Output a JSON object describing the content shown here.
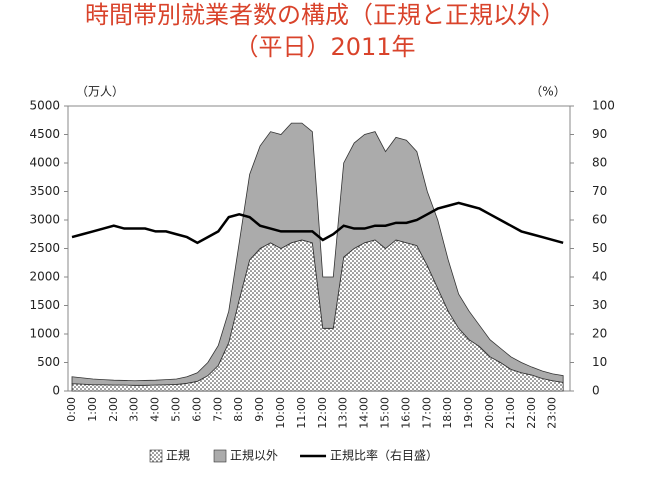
{
  "chart_data": {
    "type": "area",
    "title": "時間帯別就業者数の構成（正規と正規以外）",
    "subtitle": "（平日）2011年",
    "y_axis_label": "（万人）",
    "y2_axis_label": "（%）",
    "categories": [
      "0:00",
      null,
      "1:00",
      null,
      "2:00",
      null,
      "3:00",
      null,
      "4:00",
      null,
      "5:00",
      null,
      "6:00",
      null,
      "7:00",
      null,
      "8:00",
      null,
      "9:00",
      null,
      "10:00",
      null,
      "11:00",
      null,
      "12:00",
      null,
      "13:00",
      null,
      "14:00",
      null,
      "15:00",
      null,
      "16:00",
      null,
      "17:00",
      null,
      "18:00",
      null,
      "19:00",
      null,
      "20:00",
      null,
      "21:00",
      null,
      "22:00",
      null,
      "23:00",
      null
    ],
    "series": [
      {
        "name": "正規",
        "color": "#ffffff",
        "pattern": "dots",
        "values": [
          130,
          120,
          110,
          110,
          105,
          105,
          100,
          100,
          105,
          110,
          115,
          135,
          170,
          270,
          450,
          850,
          1600,
          2300,
          2500,
          2600,
          2500,
          2600,
          2650,
          2600,
          1100,
          1100,
          2350,
          2500,
          2600,
          2650,
          2500,
          2650,
          2600,
          2550,
          2200,
          1800,
          1400,
          1100,
          900,
          780,
          600,
          500,
          380,
          320,
          280,
          220,
          180,
          150
        ]
      },
      {
        "name": "正規以外",
        "color": "#ababab",
        "values": [
          120,
          110,
          100,
          90,
          85,
          80,
          80,
          85,
          85,
          90,
          95,
          115,
          150,
          230,
          350,
          550,
          1000,
          1500,
          1800,
          1950,
          2000,
          2100,
          2050,
          1950,
          900,
          900,
          1650,
          1850,
          1900,
          1900,
          1700,
          1800,
          1800,
          1650,
          1300,
          1200,
          900,
          600,
          500,
          370,
          300,
          250,
          220,
          180,
          140,
          130,
          120,
          120
        ]
      },
      {
        "name": "正規比率（右目盛）",
        "color": "#000000",
        "axis": "y2",
        "values": [
          54,
          55,
          56,
          57,
          58,
          57,
          57,
          57,
          56,
          56,
          55,
          54,
          52,
          54,
          56,
          61,
          62,
          61,
          58,
          57,
          56,
          56,
          56,
          56,
          53,
          55,
          58,
          57,
          57,
          58,
          58,
          59,
          59,
          60,
          62,
          64,
          65,
          66,
          65,
          64,
          62,
          60,
          58,
          56,
          55,
          54,
          53,
          52
        ]
      }
    ],
    "ylim": [
      0,
      5000
    ],
    "yticks": [
      0,
      500,
      1000,
      1500,
      2000,
      2500,
      3000,
      3500,
      4000,
      4500,
      5000
    ],
    "y2lim": [
      0,
      100
    ],
    "y2ticks": [
      0,
      10,
      20,
      30,
      40,
      50,
      60,
      70,
      80,
      90,
      100
    ],
    "grid": false,
    "legend": "bottom"
  }
}
